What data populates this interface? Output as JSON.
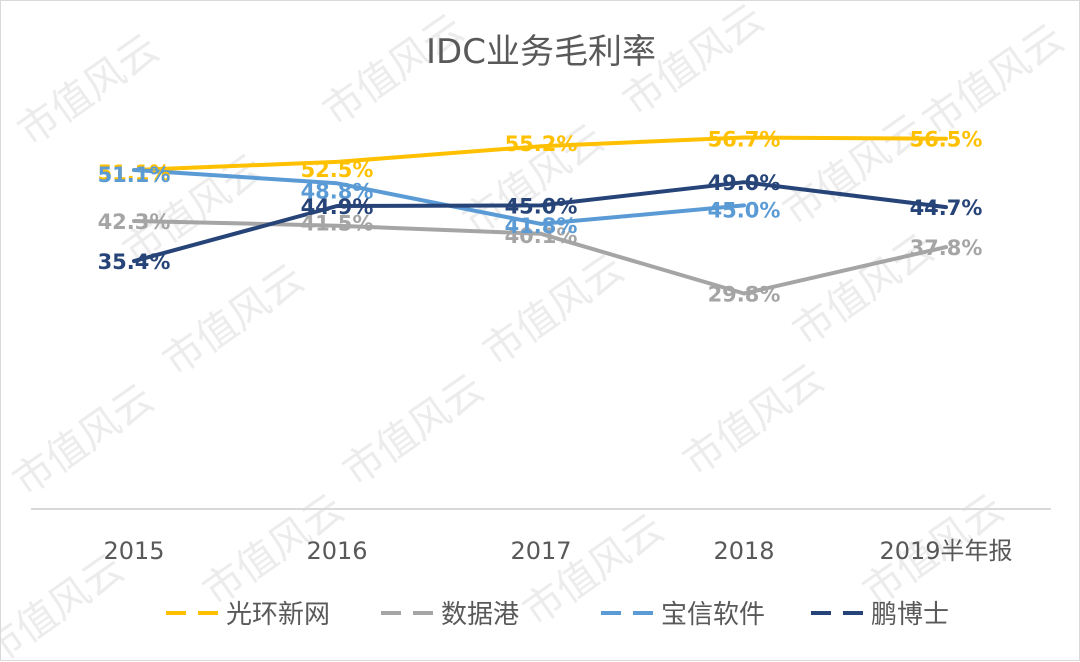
{
  "chart_data": {
    "type": "line",
    "title": "IDC业务毛利率",
    "xlabel": "",
    "ylabel": "",
    "categories": [
      "2015",
      "2016",
      "2017",
      "2018",
      "2019半年报"
    ],
    "ylim": [
      0,
      60
    ],
    "grid": false,
    "legend_position": "bottom",
    "series": [
      {
        "name": "光环新网",
        "color": "#FFC000",
        "values": [
          51.1,
          52.5,
          55.2,
          56.7,
          56.5
        ],
        "labels": [
          "51.1%",
          "52.5%",
          "55.2%",
          "56.7%",
          "56.5%"
        ]
      },
      {
        "name": "数据港",
        "color": "#A5A5A5",
        "values": [
          42.3,
          41.5,
          40.1,
          29.8,
          37.8
        ],
        "labels": [
          "42.3%",
          "41.5%",
          "40.1%",
          "29.8%",
          "37.8%"
        ]
      },
      {
        "name": "宝信软件",
        "color": "#5B9BD5",
        "values": [
          51.1,
          48.8,
          41.8,
          45.0,
          null
        ],
        "labels": [
          "51.1%",
          "48.8%",
          "41.8%",
          "45.0%",
          null
        ]
      },
      {
        "name": "鹏博士",
        "color": "#264478",
        "values": [
          35.4,
          44.9,
          45.0,
          49.0,
          44.7
        ],
        "labels": [
          "35.4%",
          "44.9%",
          "45.0%",
          "49.0%",
          "44.7%"
        ]
      }
    ]
  },
  "watermark": "市值风云"
}
